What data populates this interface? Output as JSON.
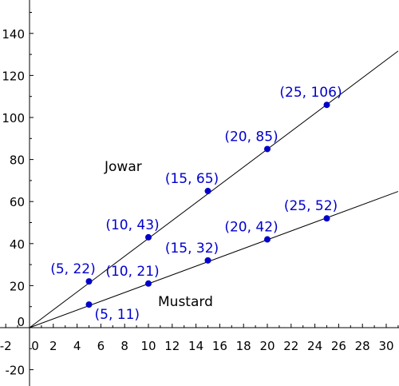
{
  "chart_data": {
    "type": "line",
    "title": "",
    "xlabel": "",
    "ylabel": "",
    "xlim": [
      -2.5,
      31
    ],
    "ylim": [
      -30,
      152
    ],
    "x_ticks": [
      -2,
      0,
      2,
      4,
      6,
      8,
      10,
      12,
      14,
      16,
      18,
      20,
      22,
      24,
      26,
      28,
      30
    ],
    "x_tick_labels": [
      "-2",
      "0",
      "2",
      "4",
      "6",
      "8",
      "10",
      "12",
      "14",
      "16",
      "18",
      "20",
      "22",
      "24",
      "26",
      "28",
      "30"
    ],
    "y_ticks": [
      -20,
      0,
      20,
      40,
      60,
      80,
      100,
      120,
      140
    ],
    "y_tick_labels": [
      "-20",
      "0",
      "20",
      "40",
      "60",
      "80",
      "100",
      "120",
      "140"
    ],
    "grid": false,
    "series": [
      {
        "name": "Jowar",
        "color": "#0000cc",
        "line_color": "#000000",
        "x": [
          5,
          10,
          15,
          20,
          25
        ],
        "y": [
          22,
          43,
          65,
          85,
          106
        ],
        "point_labels": [
          "(5, 22)",
          "(10, 43)",
          "(15, 65)",
          "(20, 85)",
          "(25, 106)"
        ]
      },
      {
        "name": "Mustard",
        "color": "#0000cc",
        "line_color": "#000000",
        "x": [
          5,
          10,
          15,
          20,
          25
        ],
        "y": [
          11,
          21,
          32,
          42,
          52
        ],
        "point_labels": [
          "(5, 11)",
          "(10, 21)",
          "(15, 32)",
          "(20, 42)",
          "(25, 52)"
        ]
      }
    ],
    "trend_lines": [
      {
        "series": "Jowar",
        "x": [
          0,
          31
        ],
        "y": [
          0,
          131.6
        ]
      },
      {
        "series": "Mustard",
        "x": [
          0,
          31
        ],
        "y": [
          0,
          64.8
        ]
      }
    ]
  }
}
